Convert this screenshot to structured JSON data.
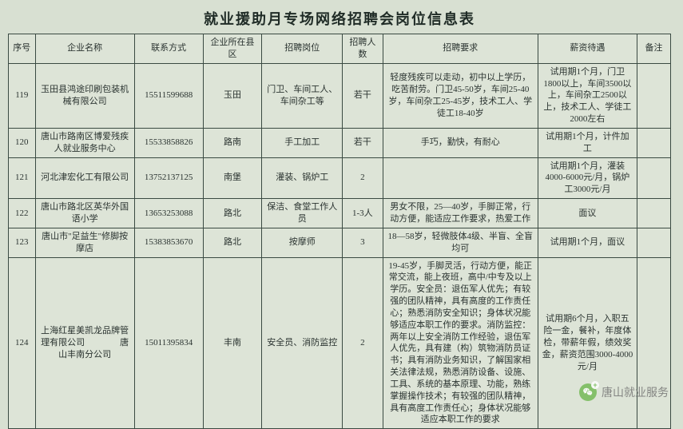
{
  "title": "就业援助月专场网络招聘会岗位信息表",
  "columns": [
    "序号",
    "企业名称",
    "联系方式",
    "企业所在县区",
    "招聘岗位",
    "招聘人数",
    "招聘要求",
    "薪资待遇",
    "备注"
  ],
  "rows": [
    {
      "seq": "119",
      "name": "玉田县鸿途印刷包装机械有限公司",
      "contact": "15511599688",
      "county": "玉田",
      "post": "门卫、车间工人、车间杂工等",
      "num": "若干",
      "req": "轻度残疾可以走动，初中以上学历，吃苦耐劳。门卫45-50岁，车间25-40岁，车间杂工25-45岁，技术工人、学徒工18-40岁",
      "sal": "试用期1个月，门卫1800以上，车间3500以上，车间杂工2500以上，技术工人、学徒工2000左右",
      "note": ""
    },
    {
      "seq": "120",
      "name": "唐山市路南区博爱残疾人就业服务中心",
      "contact": "15533858826",
      "county": "路南",
      "post": "手工加工",
      "num": "若干",
      "req": "手巧，勤快，有耐心",
      "sal": "试用期1个月，计件加工",
      "note": ""
    },
    {
      "seq": "121",
      "name": "河北津宏化工有限公司",
      "contact": "13752137125",
      "county": "南堡",
      "post": "灌装、锅炉工",
      "num": "2",
      "req": "",
      "sal": "试用期1个月，灌装4000-6000元/月，锅炉工3000元/月",
      "note": ""
    },
    {
      "seq": "122",
      "name": "唐山市路北区英华外国语小学",
      "contact": "13653253088",
      "county": "路北",
      "post": "保洁、食堂工作人员",
      "num": "1-3人",
      "req": "男女不限，25—40岁，手脚正常，行动方便，能适应工作要求，热爱工作",
      "sal": "面议",
      "note": ""
    },
    {
      "seq": "123",
      "name": "唐山市\"足益生\"修脚按摩店",
      "contact": "15383853670",
      "county": "路北",
      "post": "按摩师",
      "num": "3",
      "req": "18—58岁，轻微肢体4级、半盲、全盲均可",
      "sal": "试用期1个月，面议",
      "note": ""
    },
    {
      "seq": "124",
      "name": "上海红星美凯龙品牌管理有限公司　　　　唐山丰南分公司",
      "contact": "15011395834",
      "county": "丰南",
      "post": "安全员、消防监控",
      "num": "2",
      "req": "19-45岁，手脚灵活，行动方便，能正常交流，能上夜班，高中/中专及以上学历。安全员：退伍军人优先；有较强的团队精神，具有高度的工作责任心；熟悉消防安全知识；身体状况能够适应本职工作的要求。消防监控：两年以上安全消防工作经验，退伍军人优先，具有建（构）筑物消防员证书；具有消防业务知识，了解国家相关法律法规，熟悉消防设备、设施、工具、系统的基本原理、功能，熟练掌握操作技术；有较强的团队精神，具有高度工作责任心；身体状况能够适应本职工作的要求",
      "sal": "试用期6个月，入职五险一金，餐补，年度体检，带薪年假，绩效奖金，薪资范围3000-4000元/月",
      "note": ""
    }
  ],
  "watermark": "唐山就业服务"
}
